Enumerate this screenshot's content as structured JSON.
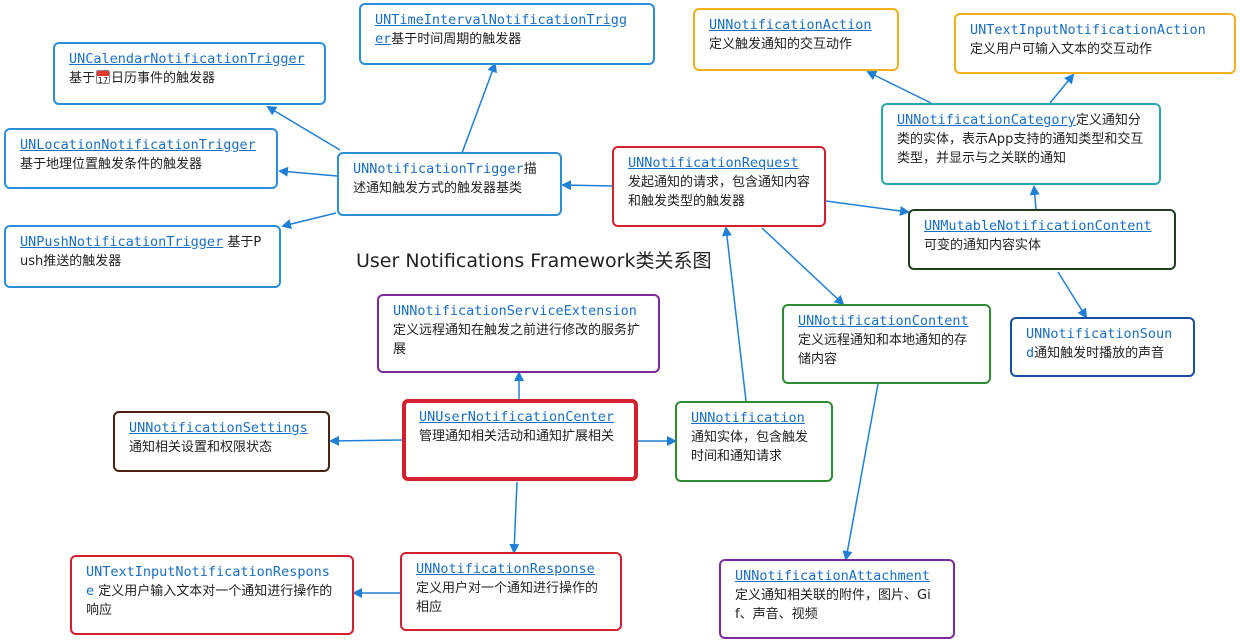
{
  "title": "User Notifications Framework类关系图",
  "colors": {
    "blue": "#2b8fd8",
    "red": "#d2202f",
    "purple": "#7b2a9a",
    "green": "#2f8a34",
    "dark_green": "#1f3d1f",
    "teal": "#2aa7b4",
    "orange": "#f2b11b",
    "navy": "#1a4fa0",
    "brown": "#4a2410",
    "arrow": "#1f7fd4"
  },
  "nodes": {
    "time_interval_trigger": {
      "name": "UNTimeIntervalNotificationTrigg",
      "name_cont": "er",
      "desc": "基于时间周期的触发器"
    },
    "calendar_trigger": {
      "name": "UNCalendarNotificationTrigger",
      "desc_prefix": "基于",
      "calendar_icon_text": "17",
      "desc": "日历事件的触发器"
    },
    "location_trigger": {
      "name": "UNLocationNotificationTrigger",
      "desc": "基于地理位置触发条件的触发器"
    },
    "push_trigger": {
      "name": "UNPushNotificationTrigger",
      "desc": " 基于Push推送的触发器"
    },
    "trigger": {
      "name": "UNNotificationTrigger",
      "desc": "描述通知触发方式的触发器基类"
    },
    "request": {
      "name": "UNNotificationRequest",
      "desc": "发起通知的请求，包含通知内容和触发类型的触发器"
    },
    "action": {
      "name": "UNNotificationAction",
      "desc": "定义触发通知的交互动作"
    },
    "text_input_action": {
      "name": "UNTextInputNotificationAction",
      "desc": "定义用户可输入文本的交互动作"
    },
    "category": {
      "name": "UNNotificationCategory",
      "desc": "定义通知分类的实体，表示App支持的通知类型和交互类型，并显示与之关联的通知"
    },
    "mutable_content": {
      "name": "UNMutableNotificationContent",
      "desc": "可变的通知内容实体"
    },
    "sound": {
      "name": "UNNotificationSoun",
      "name_cont": "d",
      "desc": "通知触发时播放的声音"
    },
    "service_extension": {
      "name": "UNNotificationServiceExtension",
      "desc": "定义远程通知在触发之前进行修改的服务扩展"
    },
    "content": {
      "name": "UNNotificationContent",
      "desc": "定义远程通知和本地通知的存储内容"
    },
    "settings": {
      "name": "UNNotificationSettings",
      "desc": "通知相关设置和权限状态"
    },
    "center": {
      "name": "UNUserNotificationCenter",
      "desc": "管理通知相关活动和通知扩展相关"
    },
    "notification": {
      "name": "UNNotification",
      "desc": "通知实体，包含触发时间和通知请求"
    },
    "attachment": {
      "name": "UNNotificationAttachment",
      "desc": "定义通知相关联的附件，图片、Gif、声音、视频"
    },
    "response": {
      "name": "UNNotificationResponse",
      "desc": "定义用户对一个通知进行操作的相应"
    },
    "text_input_response": {
      "name": "UNTextInputNotificationRespons",
      "name_cont": "e",
      "desc": " 定义用户输入文本对一个通知进行操作的响应"
    }
  }
}
